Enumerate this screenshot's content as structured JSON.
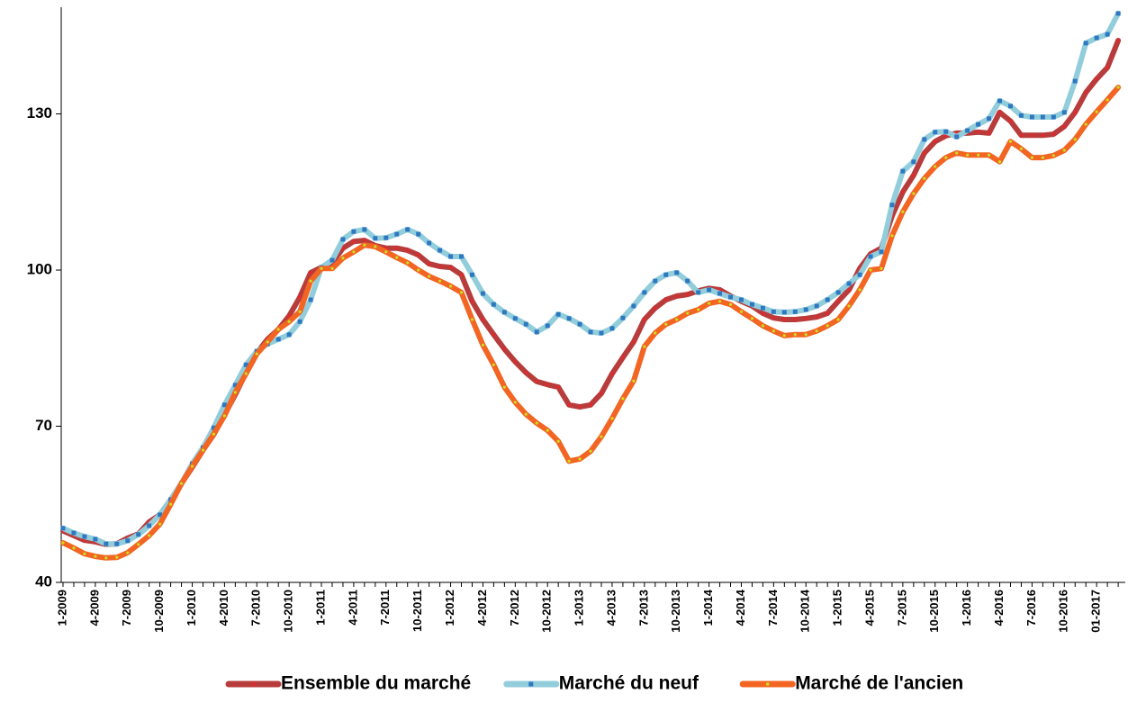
{
  "chart_data": {
    "type": "line",
    "categories": [
      "1-2009",
      null,
      null,
      "4-2009",
      null,
      null,
      "7-2009",
      null,
      null,
      "10-2009",
      null,
      null,
      "1-2010",
      null,
      null,
      "4-2010",
      null,
      null,
      "7-2010",
      null,
      null,
      "10-2010",
      null,
      null,
      "1-2011",
      null,
      null,
      "4-2011",
      null,
      null,
      "7-2011",
      null,
      null,
      "10-2011",
      null,
      null,
      "1-2012",
      null,
      null,
      "4-2012",
      null,
      null,
      "7-2012",
      null,
      null,
      "10-2012",
      null,
      null,
      "1-2013",
      null,
      null,
      "4-2013",
      null,
      null,
      "7-2013",
      null,
      null,
      "10-2013",
      null,
      null,
      "1-2014",
      null,
      null,
      "4-2014",
      null,
      null,
      "7-2014",
      null,
      null,
      "10-2014",
      null,
      null,
      "1-2015",
      null,
      null,
      "4-2015",
      null,
      null,
      "7-2015",
      null,
      null,
      "10-2015",
      null,
      null,
      "1-2016",
      null,
      null,
      "4-2016",
      null,
      null,
      "7-2016",
      null,
      null,
      "10-2016",
      null,
      null,
      "01-2017",
      null,
      null
    ],
    "series": [
      {
        "name": "Ensemble du marché",
        "color": "#b83c3c",
        "marker_color": "#e8262a",
        "marker": "circle",
        "values": [
          49.9,
          49.0,
          48.1,
          47.8,
          47.3,
          47.4,
          48.5,
          49.3,
          51.6,
          53.0,
          55.9,
          59.0,
          62.1,
          65.4,
          68.4,
          72.2,
          76.1,
          80.3,
          84.1,
          86.7,
          88.6,
          91.2,
          94.8,
          99.5,
          100.5,
          101.4,
          104.2,
          105.5,
          105.7,
          104.7,
          104.2,
          104.2,
          103.8,
          102.9,
          101.2,
          100.7,
          100.5,
          99.1,
          94.0,
          90.5,
          87.6,
          84.8,
          82.4,
          80.3,
          78.6,
          78.0,
          77.5,
          74.1,
          73.7,
          74.1,
          76.3,
          80.1,
          83.2,
          86.2,
          90.5,
          92.7,
          94.3,
          95.0,
          95.3,
          96.0,
          96.5,
          96.2,
          95.0,
          94.0,
          93.1,
          91.7,
          90.8,
          90.5,
          90.5,
          90.7,
          91.0,
          91.7,
          94.0,
          96.2,
          100.3,
          103.1,
          104.2,
          110.4,
          115.0,
          118.2,
          122.5,
          124.7,
          125.8,
          126.3,
          126.3,
          126.5,
          126.3,
          130.3,
          128.6,
          125.9,
          125.9,
          125.9,
          126.1,
          127.6,
          130.3,
          134.1,
          136.7,
          138.9,
          144.1
        ]
      },
      {
        "name": "Marché du neuf",
        "color": "#92cddc",
        "marker_color": "#2e78c0",
        "marker": "square",
        "values": [
          50.4,
          49.5,
          48.8,
          48.3,
          47.4,
          47.4,
          48.0,
          49.2,
          50.9,
          53.0,
          55.9,
          59.0,
          62.8,
          65.9,
          69.7,
          74.1,
          77.9,
          81.8,
          84.4,
          85.8,
          86.7,
          87.6,
          90.1,
          94.3,
          100.5,
          101.9,
          105.9,
          107.4,
          107.8,
          106.1,
          106.2,
          106.9,
          107.8,
          106.9,
          105.2,
          103.8,
          102.6,
          102.6,
          99.1,
          95.5,
          93.4,
          91.9,
          90.7,
          89.6,
          88.1,
          89.3,
          91.5,
          90.7,
          89.6,
          88.1,
          87.9,
          88.8,
          90.8,
          93.1,
          95.7,
          97.9,
          99.1,
          99.5,
          97.9,
          95.7,
          96.2,
          95.5,
          94.8,
          94.3,
          93.4,
          92.7,
          92.0,
          91.9,
          92.0,
          92.4,
          93.1,
          94.3,
          95.7,
          97.4,
          99.1,
          102.6,
          103.5,
          112.5,
          119.0,
          120.8,
          125.1,
          126.5,
          126.6,
          125.6,
          126.8,
          128.0,
          129.1,
          132.5,
          131.5,
          129.7,
          129.4,
          129.4,
          129.4,
          130.3,
          136.3,
          143.6,
          144.6,
          145.3,
          149.3
        ]
      },
      {
        "name": "Marché de l'ancien",
        "color": "#f26522",
        "marker_color": "#c8e020",
        "marker": "circle",
        "values": [
          47.6,
          46.6,
          45.5,
          45.0,
          44.7,
          44.8,
          45.7,
          47.3,
          49.0,
          51.2,
          55.0,
          59.0,
          62.3,
          65.4,
          68.5,
          72.0,
          76.5,
          80.1,
          83.9,
          86.2,
          88.6,
          90.1,
          92.0,
          97.9,
          100.3,
          100.3,
          102.3,
          103.5,
          104.8,
          104.5,
          103.5,
          102.4,
          101.4,
          100.0,
          98.8,
          97.9,
          96.9,
          95.7,
          90.5,
          85.6,
          81.8,
          77.5,
          74.6,
          72.3,
          70.6,
          69.2,
          67.1,
          63.3,
          63.7,
          65.2,
          68.0,
          71.5,
          75.3,
          78.7,
          85.3,
          87.9,
          89.6,
          90.5,
          91.7,
          92.4,
          93.6,
          94.0,
          93.4,
          92.0,
          90.7,
          89.3,
          88.3,
          87.4,
          87.6,
          87.6,
          88.3,
          89.3,
          90.5,
          93.1,
          96.2,
          100.0,
          100.3,
          106.6,
          111.2,
          114.7,
          117.6,
          119.9,
          121.6,
          122.5,
          122.1,
          122.1,
          122.1,
          120.8,
          124.7,
          123.3,
          121.6,
          121.6,
          122.0,
          123.0,
          125.1,
          128.0,
          130.4,
          132.7,
          135.1
        ]
      }
    ],
    "ylim": [
      40,
      150.5
    ],
    "yticks": [
      40,
      70,
      100,
      130
    ],
    "grid": false,
    "legend": "bottom"
  }
}
